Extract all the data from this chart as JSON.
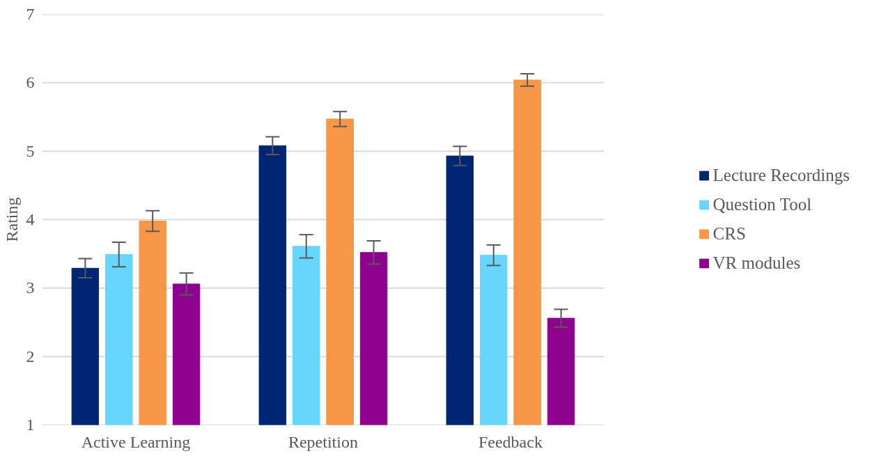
{
  "chart_data": {
    "type": "bar",
    "ylabel": "Rating",
    "categories": [
      "Active Learning",
      "Repetition",
      "Feedback"
    ],
    "series": [
      {
        "name": "Lecture Recordings",
        "color": "#002673",
        "values": [
          3.29,
          5.08,
          4.93
        ],
        "errors": [
          0.14,
          0.13,
          0.14
        ]
      },
      {
        "name": "Question Tool",
        "color": "#66d6ff",
        "values": [
          3.49,
          3.61,
          3.48
        ],
        "errors": [
          0.18,
          0.17,
          0.15
        ]
      },
      {
        "name": "CRS",
        "color": "#f79646",
        "values": [
          3.98,
          5.47,
          6.04
        ],
        "errors": [
          0.15,
          0.11,
          0.09
        ]
      },
      {
        "name": "VR modules",
        "color": "#8e008e",
        "values": [
          3.06,
          3.52,
          2.56
        ],
        "errors": [
          0.16,
          0.17,
          0.13
        ]
      }
    ],
    "ylim": [
      1,
      7
    ],
    "yticks": [
      1,
      2,
      3,
      4,
      5,
      6,
      7
    ],
    "grid": "y",
    "legend": "right"
  }
}
